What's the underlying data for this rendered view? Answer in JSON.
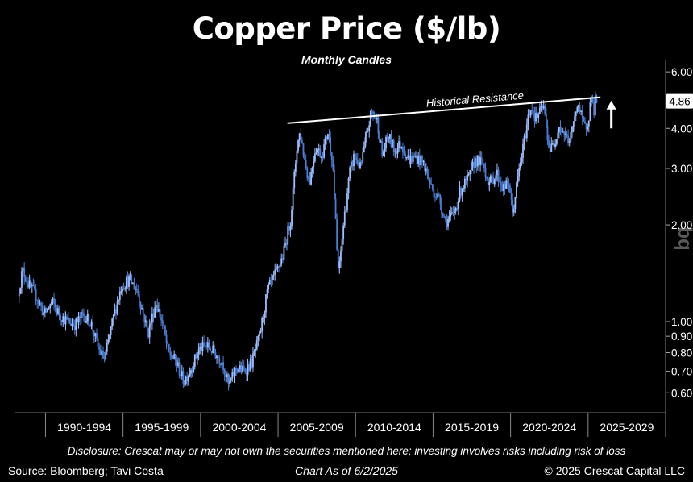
{
  "title": "Copper Price ($/lb)",
  "subtitle": "Monthly Candles",
  "footer": {
    "disclosure": "Disclosure: Crescat may or may not own the securities mentioned here; investing involves risks including risk of loss",
    "source": "Source: Bloomberg; Tavi Costa",
    "chart_date": "Chart As of 6/2/2025",
    "copyright": "© 2025 Crescat Capital LLC"
  },
  "colors": {
    "background": "#000000",
    "candle": "#4a7fd6",
    "candle_light": "#9fc0ff",
    "resistance": "#ffffff",
    "text": "#ffffff"
  },
  "chart_data": {
    "type": "candlestick",
    "title": "Copper Price ($/lb)",
    "subtitle": "Monthly Candles",
    "y_scale": "log",
    "ylim": [
      0.52,
      6.4
    ],
    "xlim": [
      1988,
      2030
    ],
    "x_tick_labels": [
      "1990-1994",
      "1995-1999",
      "2000-2004",
      "2005-2009",
      "2010-2014",
      "2015-2019",
      "2020-2024",
      "2025-2029"
    ],
    "x_tick_bounds": [
      1990,
      1995,
      2000,
      2005,
      2010,
      2015,
      2020,
      2025,
      2030
    ],
    "y_ticks": [
      {
        "value": 6.0,
        "label": "6.00"
      },
      {
        "value": 4.0,
        "label": "4.00"
      },
      {
        "value": 3.0,
        "label": "3.00"
      },
      {
        "value": 2.0,
        "label": "2.00"
      },
      {
        "value": 1.0,
        "label": "1.00"
      },
      {
        "value": 0.9,
        "label": "0.90"
      },
      {
        "value": 0.8,
        "label": "0.80"
      },
      {
        "value": 0.7,
        "label": "0.70"
      },
      {
        "value": 0.6,
        "label": "0.60"
      }
    ],
    "last_price": {
      "value": 4.86,
      "label": "4.86"
    },
    "watermark": "bq",
    "annotation": {
      "text": "Historical Resistance"
    },
    "resistance_line": {
      "start": {
        "x": 2005.6,
        "y": 4.15
      },
      "end": {
        "x": 2025.8,
        "y": 5.0
      }
    },
    "arrow": {
      "x": 2026.5,
      "y_from": 4.0,
      "y_to": 4.8,
      "direction": "up"
    },
    "price_path": [
      {
        "x": 1988.3,
        "y": 1.2
      },
      {
        "x": 1988.6,
        "y": 1.45
      },
      {
        "x": 1989.0,
        "y": 1.3
      },
      {
        "x": 1989.5,
        "y": 1.2
      },
      {
        "x": 1990.0,
        "y": 1.05
      },
      {
        "x": 1990.5,
        "y": 1.15
      },
      {
        "x": 1991.0,
        "y": 1.05
      },
      {
        "x": 1991.5,
        "y": 1.0
      },
      {
        "x": 1992.0,
        "y": 0.98
      },
      {
        "x": 1992.5,
        "y": 1.05
      },
      {
        "x": 1993.0,
        "y": 1.0
      },
      {
        "x": 1993.5,
        "y": 0.82
      },
      {
        "x": 1993.9,
        "y": 0.76
      },
      {
        "x": 1994.5,
        "y": 1.05
      },
      {
        "x": 1995.0,
        "y": 1.3
      },
      {
        "x": 1995.5,
        "y": 1.35
      },
      {
        "x": 1996.0,
        "y": 1.25
      },
      {
        "x": 1996.3,
        "y": 1.1
      },
      {
        "x": 1996.7,
        "y": 0.92
      },
      {
        "x": 1997.2,
        "y": 1.15
      },
      {
        "x": 1997.6,
        "y": 1.0
      },
      {
        "x": 1998.0,
        "y": 0.8
      },
      {
        "x": 1998.5,
        "y": 0.75
      },
      {
        "x": 1999.0,
        "y": 0.65
      },
      {
        "x": 1999.5,
        "y": 0.72
      },
      {
        "x": 2000.0,
        "y": 0.82
      },
      {
        "x": 2000.5,
        "y": 0.84
      },
      {
        "x": 2001.0,
        "y": 0.8
      },
      {
        "x": 2001.5,
        "y": 0.75
      },
      {
        "x": 2001.9,
        "y": 0.63
      },
      {
        "x": 2002.4,
        "y": 0.72
      },
      {
        "x": 2002.9,
        "y": 0.7
      },
      {
        "x": 2003.4,
        "y": 0.75
      },
      {
        "x": 2003.9,
        "y": 0.9
      },
      {
        "x": 2004.4,
        "y": 1.25
      },
      {
        "x": 2004.9,
        "y": 1.4
      },
      {
        "x": 2005.4,
        "y": 1.6
      },
      {
        "x": 2005.9,
        "y": 2.1
      },
      {
        "x": 2006.3,
        "y": 3.5
      },
      {
        "x": 2006.5,
        "y": 3.9
      },
      {
        "x": 2006.8,
        "y": 3.2
      },
      {
        "x": 2007.1,
        "y": 2.7
      },
      {
        "x": 2007.5,
        "y": 3.5
      },
      {
        "x": 2007.9,
        "y": 3.3
      },
      {
        "x": 2008.3,
        "y": 3.9
      },
      {
        "x": 2008.6,
        "y": 3.2
      },
      {
        "x": 2008.9,
        "y": 1.6
      },
      {
        "x": 2009.0,
        "y": 1.4
      },
      {
        "x": 2009.3,
        "y": 2.0
      },
      {
        "x": 2009.7,
        "y": 2.9
      },
      {
        "x": 2010.0,
        "y": 3.3
      },
      {
        "x": 2010.4,
        "y": 3.0
      },
      {
        "x": 2010.8,
        "y": 3.8
      },
      {
        "x": 2011.1,
        "y": 4.5
      },
      {
        "x": 2011.5,
        "y": 4.2
      },
      {
        "x": 2011.8,
        "y": 3.3
      },
      {
        "x": 2012.2,
        "y": 3.8
      },
      {
        "x": 2012.6,
        "y": 3.4
      },
      {
        "x": 2013.0,
        "y": 3.6
      },
      {
        "x": 2013.5,
        "y": 3.2
      },
      {
        "x": 2014.0,
        "y": 3.25
      },
      {
        "x": 2014.5,
        "y": 3.1
      },
      {
        "x": 2015.0,
        "y": 2.6
      },
      {
        "x": 2015.5,
        "y": 2.4
      },
      {
        "x": 2015.9,
        "y": 2.05
      },
      {
        "x": 2016.4,
        "y": 2.15
      },
      {
        "x": 2016.9,
        "y": 2.6
      },
      {
        "x": 2017.4,
        "y": 2.8
      },
      {
        "x": 2017.8,
        "y": 3.2
      },
      {
        "x": 2018.3,
        "y": 3.1
      },
      {
        "x": 2018.7,
        "y": 2.7
      },
      {
        "x": 2019.2,
        "y": 2.9
      },
      {
        "x": 2019.6,
        "y": 2.6
      },
      {
        "x": 2020.0,
        "y": 2.7
      },
      {
        "x": 2020.2,
        "y": 2.15
      },
      {
        "x": 2020.6,
        "y": 2.9
      },
      {
        "x": 2020.9,
        "y": 3.5
      },
      {
        "x": 2021.2,
        "y": 4.3
      },
      {
        "x": 2021.4,
        "y": 4.7
      },
      {
        "x": 2021.7,
        "y": 4.3
      },
      {
        "x": 2022.0,
        "y": 4.5
      },
      {
        "x": 2022.2,
        "y": 4.7
      },
      {
        "x": 2022.6,
        "y": 3.4
      },
      {
        "x": 2022.9,
        "y": 3.6
      },
      {
        "x": 2023.2,
        "y": 4.1
      },
      {
        "x": 2023.6,
        "y": 3.8
      },
      {
        "x": 2023.9,
        "y": 3.65
      },
      {
        "x": 2024.2,
        "y": 4.2
      },
      {
        "x": 2024.4,
        "y": 4.9
      },
      {
        "x": 2024.7,
        "y": 4.2
      },
      {
        "x": 2024.9,
        "y": 4.0
      },
      {
        "x": 2025.1,
        "y": 4.3
      },
      {
        "x": 2025.3,
        "y": 5.1
      },
      {
        "x": 2025.45,
        "y": 4.5
      },
      {
        "x": 2025.55,
        "y": 4.86
      }
    ]
  }
}
